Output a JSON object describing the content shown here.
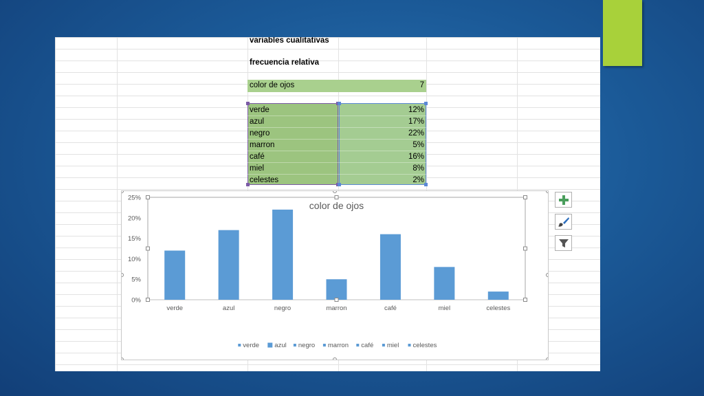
{
  "sheet": {
    "heading1": "variables cualitativas",
    "heading2": "frecuencia relativa",
    "header_label": "color de ojos",
    "header_value": "7",
    "rows": [
      {
        "label": "verde",
        "value": "12%"
      },
      {
        "label": "azul",
        "value": "17%"
      },
      {
        "label": "negro",
        "value": "22%"
      },
      {
        "label": "marron",
        "value": "5%"
      },
      {
        "label": "café",
        "value": "16%"
      },
      {
        "label": "miel",
        "value": "8%"
      },
      {
        "label": "celestes",
        "value": "2%"
      }
    ]
  },
  "colors": {
    "bar": "#5b9bd5",
    "accent": "#a8d13a",
    "cell_green": "#a9d08e",
    "plus": "#4a9e5c"
  },
  "icons": [
    "plus-icon",
    "brush-icon",
    "filter-icon"
  ],
  "chart_data": {
    "type": "bar",
    "title": "color de ojos",
    "categories": [
      "verde",
      "azul",
      "negro",
      "marron",
      "café",
      "miel",
      "celestes"
    ],
    "values": [
      0.12,
      0.17,
      0.22,
      0.05,
      0.16,
      0.08,
      0.02
    ],
    "ylim": [
      0,
      0.25
    ],
    "yticks": [
      "0%",
      "5%",
      "10%",
      "15%",
      "20%",
      "25%"
    ],
    "xlabel": "",
    "ylabel": "",
    "grid": false,
    "legend": "bottom",
    "legend_entries": [
      "verde",
      "azul",
      "negro",
      "marron",
      "café",
      "miel",
      "celestes"
    ]
  }
}
